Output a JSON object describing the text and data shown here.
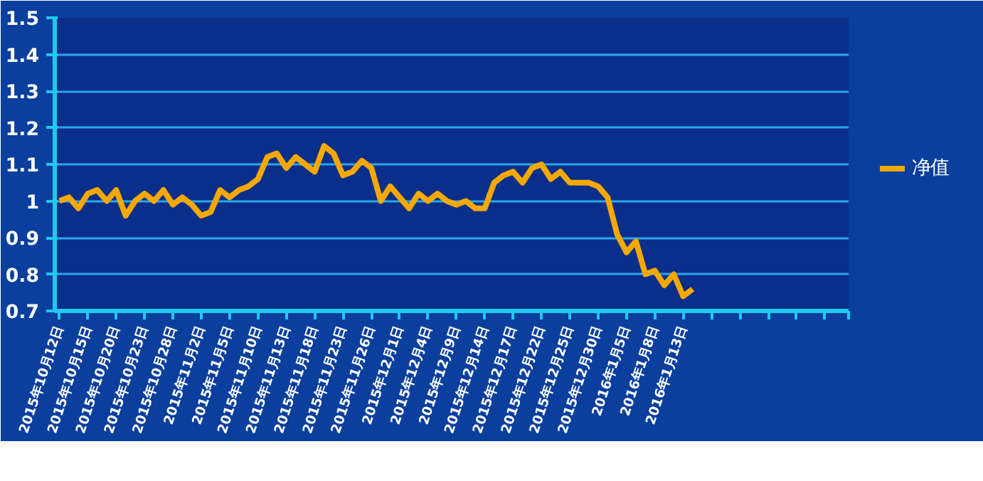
{
  "chart_data": {
    "type": "line",
    "categories": [
      "2015年10月12日",
      null,
      null,
      "2015年10月15日",
      null,
      null,
      "2015年10月20日",
      null,
      null,
      "2015年10月23日",
      null,
      null,
      "2015年10月28日",
      null,
      null,
      "2015年11月2日",
      null,
      null,
      "2015年11月5日",
      null,
      null,
      "2015年11月10日",
      null,
      null,
      "2015年11月13日",
      null,
      null,
      "2015年11月18日",
      null,
      null,
      "2015年11月23日",
      null,
      null,
      "2015年11月26日",
      null,
      null,
      "2015年12月1日",
      null,
      null,
      "2015年12月4日",
      null,
      null,
      "2015年12月9日",
      null,
      null,
      "2015年12月14日",
      null,
      null,
      "2015年12月17日",
      null,
      null,
      "2015年12月22日",
      null,
      null,
      "2015年12月25日",
      null,
      null,
      "2015年12月30日",
      null,
      null,
      "2016年1月5日",
      null,
      null,
      "2016年1月8日",
      null,
      null,
      "2016年1月13日",
      null,
      null,
      null,
      null,
      null,
      null,
      null,
      null,
      null,
      null,
      null,
      null,
      null,
      null,
      null,
      null,
      null
    ],
    "series": [
      {
        "name": "净值",
        "color": "#f5a800",
        "values": [
          1.0,
          1.01,
          0.98,
          1.02,
          1.03,
          1.0,
          1.03,
          0.96,
          1.0,
          1.02,
          1.0,
          1.03,
          0.99,
          1.01,
          0.99,
          0.96,
          0.97,
          1.03,
          1.01,
          1.03,
          1.04,
          1.06,
          1.12,
          1.13,
          1.09,
          1.12,
          1.1,
          1.08,
          1.15,
          1.13,
          1.07,
          1.08,
          1.11,
          1.09,
          1.0,
          1.04,
          1.01,
          0.98,
          1.02,
          1.0,
          1.02,
          1.0,
          0.99,
          1.0,
          0.98,
          0.98,
          1.05,
          1.07,
          1.08,
          1.05,
          1.09,
          1.1,
          1.06,
          1.08,
          1.05,
          1.05,
          1.05,
          1.04,
          1.01,
          0.91,
          0.86,
          0.89,
          0.8,
          0.81,
          0.77,
          0.8,
          0.74,
          0.76,
          null,
          null,
          null,
          null,
          null,
          null,
          null,
          null,
          null,
          null,
          null,
          null,
          null,
          null,
          null,
          null
        ]
      }
    ],
    "ylim": [
      0.7,
      1.5
    ],
    "yticks": [
      0.7,
      0.8,
      0.9,
      1,
      1.1,
      1.2,
      1.3,
      1.4,
      1.5
    ],
    "grid": "y",
    "legend": "right",
    "marker": "none",
    "line_style": "solid"
  }
}
